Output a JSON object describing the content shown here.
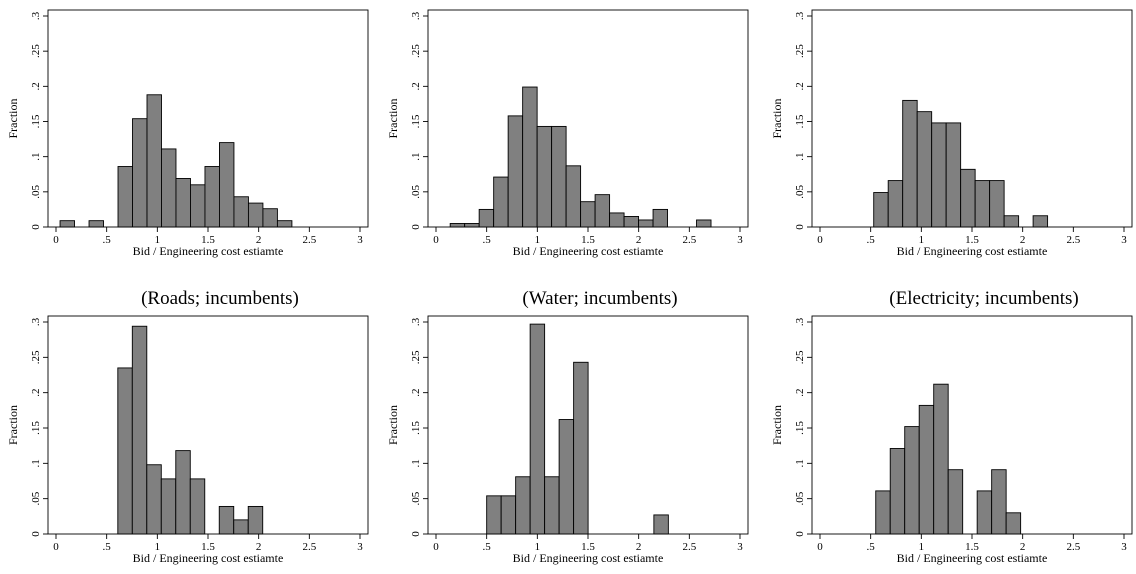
{
  "chart_data": [
    {
      "type": "bar",
      "title": "",
      "caption": "(Roads; incumbents)",
      "xlabel": "Bid / Engineering cost estiamte",
      "ylabel": "Fraction",
      "xlim": [
        0,
        3
      ],
      "ylim": [
        0,
        0.3
      ],
      "xticks": [
        "0",
        ".5",
        "1",
        "1.5",
        "2",
        "2.5",
        "3"
      ],
      "yticks": [
        "0",
        ".05",
        ".1",
        ".15",
        ".2",
        ".25",
        ".3"
      ],
      "bin_width": 0.143,
      "bins": [
        {
          "x0": 0.04,
          "v": 0.009
        },
        {
          "x0": 0.183,
          "v": 0.0
        },
        {
          "x0": 0.326,
          "v": 0.009
        },
        {
          "x0": 0.469,
          "v": 0.0
        },
        {
          "x0": 0.612,
          "v": 0.086
        },
        {
          "x0": 0.755,
          "v": 0.154
        },
        {
          "x0": 0.898,
          "v": 0.188
        },
        {
          "x0": 1.041,
          "v": 0.111
        },
        {
          "x0": 1.184,
          "v": 0.069
        },
        {
          "x0": 1.327,
          "v": 0.06
        },
        {
          "x0": 1.47,
          "v": 0.086
        },
        {
          "x0": 1.613,
          "v": 0.12
        },
        {
          "x0": 1.756,
          "v": 0.043
        },
        {
          "x0": 1.899,
          "v": 0.034
        },
        {
          "x0": 2.042,
          "v": 0.026
        },
        {
          "x0": 2.185,
          "v": 0.009
        }
      ]
    },
    {
      "type": "bar",
      "title": "",
      "caption": "(Water; incumbents)",
      "xlabel": "Bid / Engineering cost estiamte",
      "ylabel": "Fraction",
      "xlim": [
        0,
        3
      ],
      "ylim": [
        0,
        0.3
      ],
      "xticks": [
        "0",
        ".5",
        "1",
        "1.5",
        "2",
        "2.5",
        "3"
      ],
      "yticks": [
        "0",
        ".05",
        ".1",
        ".15",
        ".2",
        ".25",
        ".3"
      ],
      "bin_width": 0.143,
      "bins": [
        {
          "x0": 0.14,
          "v": 0.005
        },
        {
          "x0": 0.283,
          "v": 0.005
        },
        {
          "x0": 0.426,
          "v": 0.025
        },
        {
          "x0": 0.569,
          "v": 0.071
        },
        {
          "x0": 0.712,
          "v": 0.158
        },
        {
          "x0": 0.855,
          "v": 0.199
        },
        {
          "x0": 0.998,
          "v": 0.143
        },
        {
          "x0": 1.141,
          "v": 0.143
        },
        {
          "x0": 1.284,
          "v": 0.087
        },
        {
          "x0": 1.427,
          "v": 0.036
        },
        {
          "x0": 1.57,
          "v": 0.046
        },
        {
          "x0": 1.713,
          "v": 0.02
        },
        {
          "x0": 1.856,
          "v": 0.015
        },
        {
          "x0": 1.999,
          "v": 0.01
        },
        {
          "x0": 2.142,
          "v": 0.025
        },
        {
          "x0": 2.285,
          "v": 0.0
        },
        {
          "x0": 2.428,
          "v": 0.0
        },
        {
          "x0": 2.571,
          "v": 0.01
        }
      ]
    },
    {
      "type": "bar",
      "title": "",
      "caption": "(Electricity; incumbents)",
      "xlabel": "Bid / Engineering cost estiamte",
      "ylabel": "Fraction",
      "xlim": [
        0,
        3
      ],
      "ylim": [
        0,
        0.3
      ],
      "xticks": [
        "0",
        ".5",
        "1",
        "1.5",
        "2",
        "2.5",
        "3"
      ],
      "yticks": [
        "0",
        ".05",
        ".1",
        ".15",
        ".2",
        ".25",
        ".3"
      ],
      "bin_width": 0.143,
      "bins": [
        {
          "x0": 0.53,
          "v": 0.049
        },
        {
          "x0": 0.673,
          "v": 0.066
        },
        {
          "x0": 0.816,
          "v": 0.18
        },
        {
          "x0": 0.959,
          "v": 0.164
        },
        {
          "x0": 1.102,
          "v": 0.148
        },
        {
          "x0": 1.245,
          "v": 0.148
        },
        {
          "x0": 1.388,
          "v": 0.082
        },
        {
          "x0": 1.531,
          "v": 0.066
        },
        {
          "x0": 1.674,
          "v": 0.066
        },
        {
          "x0": 1.817,
          "v": 0.016
        },
        {
          "x0": 1.96,
          "v": 0.0
        },
        {
          "x0": 2.103,
          "v": 0.016
        }
      ]
    },
    {
      "type": "bar",
      "title": "",
      "caption": "",
      "xlabel": "Bid / Engineering cost estiamte",
      "ylabel": "Fraction",
      "xlim": [
        0,
        3
      ],
      "ylim": [
        0,
        0.3
      ],
      "xticks": [
        "0",
        ".5",
        "1",
        "1.5",
        "2",
        "2.5",
        "3"
      ],
      "yticks": [
        "0",
        ".05",
        ".1",
        ".15",
        ".2",
        ".25",
        ".3"
      ],
      "bin_width": 0.143,
      "bins": [
        {
          "x0": 0.61,
          "v": 0.235
        },
        {
          "x0": 0.753,
          "v": 0.294
        },
        {
          "x0": 0.896,
          "v": 0.098
        },
        {
          "x0": 1.039,
          "v": 0.078
        },
        {
          "x0": 1.182,
          "v": 0.118
        },
        {
          "x0": 1.325,
          "v": 0.078
        },
        {
          "x0": 1.468,
          "v": 0.0
        },
        {
          "x0": 1.611,
          "v": 0.039
        },
        {
          "x0": 1.754,
          "v": 0.02
        },
        {
          "x0": 1.897,
          "v": 0.039
        }
      ]
    },
    {
      "type": "bar",
      "title": "",
      "caption": "",
      "xlabel": "Bid / Engineering cost estiamte",
      "ylabel": "Fraction",
      "xlim": [
        0,
        3
      ],
      "ylim": [
        0,
        0.3
      ],
      "xticks": [
        "0",
        ".5",
        "1",
        "1.5",
        "2",
        "2.5",
        "3"
      ],
      "yticks": [
        "0",
        ".05",
        ".1",
        ".15",
        ".2",
        ".25",
        ".3"
      ],
      "bin_width": 0.143,
      "bins": [
        {
          "x0": 0.5,
          "v": 0.054
        },
        {
          "x0": 0.643,
          "v": 0.054
        },
        {
          "x0": 0.786,
          "v": 0.081
        },
        {
          "x0": 0.929,
          "v": 0.297
        },
        {
          "x0": 1.072,
          "v": 0.081
        },
        {
          "x0": 1.215,
          "v": 0.162
        },
        {
          "x0": 1.358,
          "v": 0.243
        },
        {
          "x0": 1.501,
          "v": 0.0
        },
        {
          "x0": 1.644,
          "v": 0.0
        },
        {
          "x0": 1.787,
          "v": 0.0
        },
        {
          "x0": 1.93,
          "v": 0.0
        },
        {
          "x0": 2.073,
          "v": 0.0
        },
        {
          "x0": 2.15,
          "v": 0.027
        }
      ]
    },
    {
      "type": "bar",
      "title": "",
      "caption": "",
      "xlabel": "Bid / Engineering cost estiamte",
      "ylabel": "Fraction",
      "xlim": [
        0,
        3
      ],
      "ylim": [
        0,
        0.3
      ],
      "xticks": [
        "0",
        ".5",
        "1",
        "1.5",
        "2",
        "2.5",
        "3"
      ],
      "yticks": [
        "0",
        ".05",
        ".1",
        ".15",
        ".2",
        ".25",
        ".3"
      ],
      "bin_width": 0.143,
      "bins": [
        {
          "x0": 0.55,
          "v": 0.061
        },
        {
          "x0": 0.693,
          "v": 0.121
        },
        {
          "x0": 0.836,
          "v": 0.152
        },
        {
          "x0": 0.979,
          "v": 0.182
        },
        {
          "x0": 1.122,
          "v": 0.212
        },
        {
          "x0": 1.265,
          "v": 0.091
        },
        {
          "x0": 1.408,
          "v": 0.0
        },
        {
          "x0": 1.551,
          "v": 0.061
        },
        {
          "x0": 1.694,
          "v": 0.091
        },
        {
          "x0": 1.837,
          "v": 0.03
        }
      ]
    }
  ]
}
